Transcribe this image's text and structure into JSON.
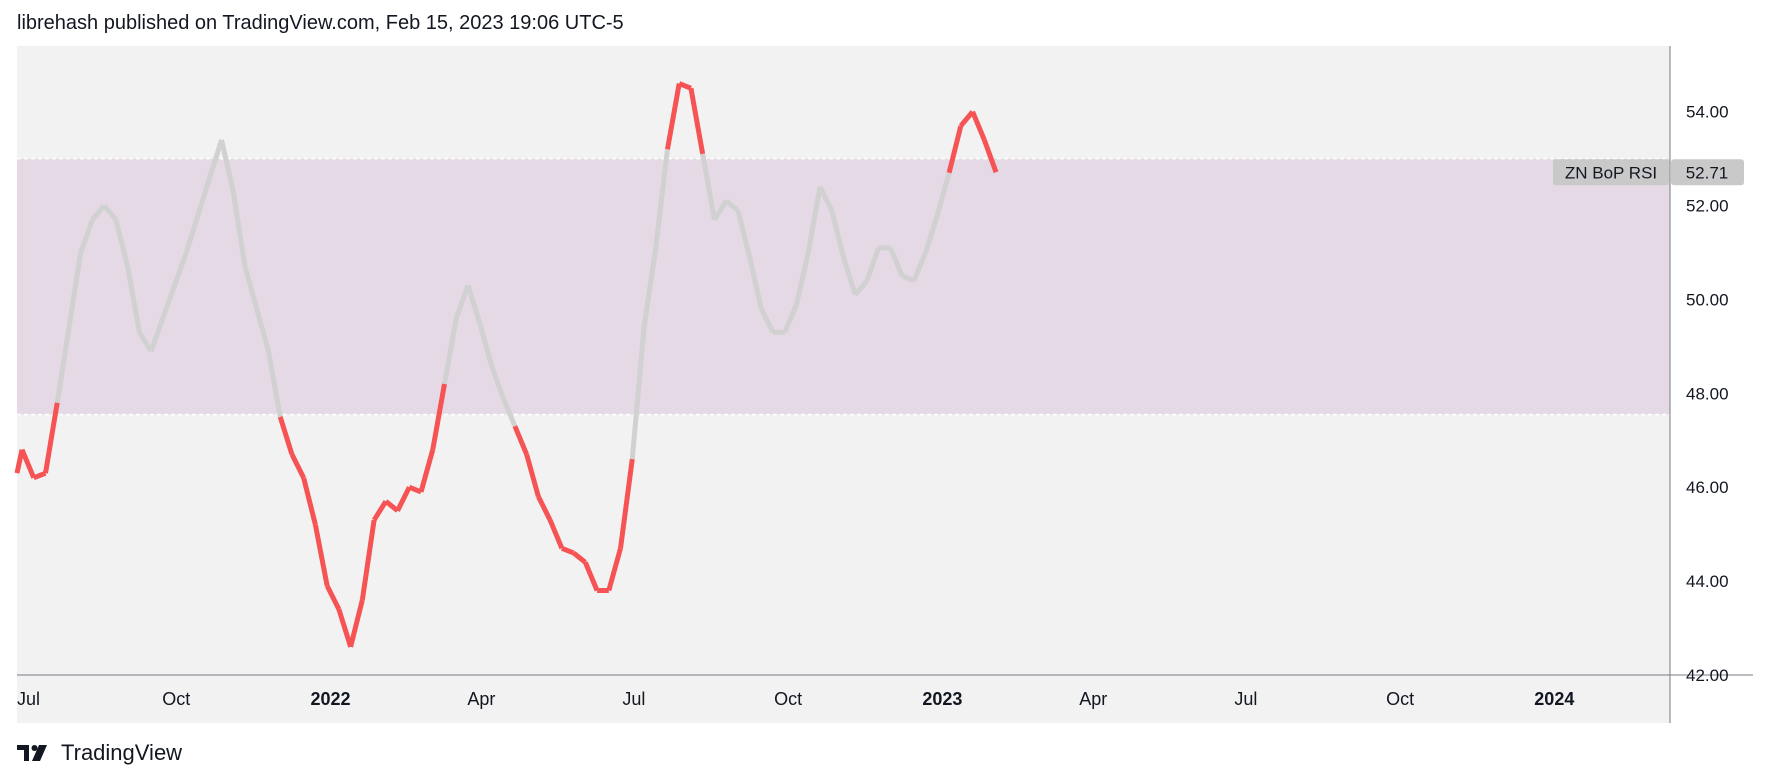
{
  "header": {
    "text": "librehash published on TradingView.com, Feb 15, 2023 19:06 UTC-5"
  },
  "footer": {
    "brand": "TradingView"
  },
  "colors": {
    "background": "#f2f2f2",
    "band_fill": "#e4d9e4",
    "band_line": "#ffffff",
    "in_band": "#d1d1d1",
    "out_band": "#f55354",
    "axis_line": "#787b86",
    "badge_bg": "#c9c9c9"
  },
  "chart_data": {
    "type": "line",
    "title": "",
    "xlabel": "",
    "ylabel": "",
    "ylim": [
      42,
      55.4
    ],
    "xlim": [
      "2021-06-28",
      "2024-03-10"
    ],
    "y_ticks": [
      "42.00",
      "44.00",
      "46.00",
      "48.00",
      "50.00",
      "52.00",
      "54.00"
    ],
    "x_ticks": [
      {
        "label": "Jul",
        "date": "2021-07-01",
        "bold": false
      },
      {
        "label": "Oct",
        "date": "2021-10-01",
        "bold": false
      },
      {
        "label": "2022",
        "date": "2022-01-01",
        "bold": true
      },
      {
        "label": "Apr",
        "date": "2022-04-01",
        "bold": false
      },
      {
        "label": "Jul",
        "date": "2022-07-01",
        "bold": false
      },
      {
        "label": "Oct",
        "date": "2022-10-01",
        "bold": false
      },
      {
        "label": "2023",
        "date": "2023-01-01",
        "bold": true
      },
      {
        "label": "Apr",
        "date": "2023-04-01",
        "bold": false
      },
      {
        "label": "Jul",
        "date": "2023-07-01",
        "bold": false
      },
      {
        "label": "Oct",
        "date": "2023-10-01",
        "bold": false
      },
      {
        "label": "2024",
        "date": "2024-01-01",
        "bold": true
      }
    ],
    "band": {
      "upper": 53.0,
      "lower": 47.55
    },
    "series": [
      {
        "name": "ZN BoP RSI",
        "last_value": "52.71",
        "points": [
          [
            "2021-06-28",
            46.3
          ],
          [
            "2021-07-01",
            46.8
          ],
          [
            "2021-07-08",
            46.2
          ],
          [
            "2021-07-15",
            46.3
          ],
          [
            "2021-07-22",
            47.8
          ],
          [
            "2021-07-29",
            49.4
          ],
          [
            "2021-08-05",
            51.0
          ],
          [
            "2021-08-12",
            51.7
          ],
          [
            "2021-08-19",
            52.0
          ],
          [
            "2021-08-26",
            51.7
          ],
          [
            "2021-09-02",
            50.7
          ],
          [
            "2021-09-09",
            49.3
          ],
          [
            "2021-09-16",
            48.9
          ],
          [
            "2021-09-23",
            49.6
          ],
          [
            "2021-09-30",
            50.3
          ],
          [
            "2021-10-07",
            51.0
          ],
          [
            "2021-10-14",
            51.8
          ],
          [
            "2021-10-21",
            52.6
          ],
          [
            "2021-10-28",
            53.4
          ],
          [
            "2021-11-04",
            52.3
          ],
          [
            "2021-11-11",
            50.7
          ],
          [
            "2021-11-18",
            49.8
          ],
          [
            "2021-11-25",
            48.9
          ],
          [
            "2021-12-02",
            47.5
          ],
          [
            "2021-12-09",
            46.7
          ],
          [
            "2021-12-16",
            46.2
          ],
          [
            "2021-12-23",
            45.2
          ],
          [
            "2021-12-30",
            43.9
          ],
          [
            "2022-01-06",
            43.4
          ],
          [
            "2022-01-13",
            42.6
          ],
          [
            "2022-01-20",
            43.6
          ],
          [
            "2022-01-27",
            45.3
          ],
          [
            "2022-02-03",
            45.7
          ],
          [
            "2022-02-10",
            45.5
          ],
          [
            "2022-02-17",
            46.0
          ],
          [
            "2022-02-24",
            45.9
          ],
          [
            "2022-03-03",
            46.8
          ],
          [
            "2022-03-10",
            48.2
          ],
          [
            "2022-03-17",
            49.6
          ],
          [
            "2022-03-24",
            50.3
          ],
          [
            "2022-03-31",
            49.5
          ],
          [
            "2022-04-07",
            48.6
          ],
          [
            "2022-04-14",
            47.9
          ],
          [
            "2022-04-21",
            47.3
          ],
          [
            "2022-04-28",
            46.7
          ],
          [
            "2022-05-05",
            45.8
          ],
          [
            "2022-05-12",
            45.3
          ],
          [
            "2022-05-19",
            44.7
          ],
          [
            "2022-05-26",
            44.6
          ],
          [
            "2022-06-02",
            44.4
          ],
          [
            "2022-06-09",
            43.8
          ],
          [
            "2022-06-16",
            43.8
          ],
          [
            "2022-06-23",
            44.7
          ],
          [
            "2022-06-30",
            46.6
          ],
          [
            "2022-07-07",
            49.4
          ],
          [
            "2022-07-14",
            51.1
          ],
          [
            "2022-07-21",
            53.2
          ],
          [
            "2022-07-28",
            54.6
          ],
          [
            "2022-08-04",
            54.5
          ],
          [
            "2022-08-11",
            53.1
          ],
          [
            "2022-08-18",
            51.7
          ],
          [
            "2022-08-25",
            52.1
          ],
          [
            "2022-09-01",
            51.9
          ],
          [
            "2022-09-08",
            50.9
          ],
          [
            "2022-09-15",
            49.8
          ],
          [
            "2022-09-22",
            49.3
          ],
          [
            "2022-09-29",
            49.3
          ],
          [
            "2022-10-06",
            49.9
          ],
          [
            "2022-10-13",
            51.0
          ],
          [
            "2022-10-20",
            52.4
          ],
          [
            "2022-10-27",
            51.9
          ],
          [
            "2022-11-03",
            50.9
          ],
          [
            "2022-11-10",
            50.1
          ],
          [
            "2022-11-17",
            50.4
          ],
          [
            "2022-11-24",
            51.1
          ],
          [
            "2022-12-01",
            51.1
          ],
          [
            "2022-12-08",
            50.5
          ],
          [
            "2022-12-15",
            50.4
          ],
          [
            "2022-12-22",
            51.0
          ],
          [
            "2022-12-29",
            51.8
          ],
          [
            "2023-01-05",
            52.7
          ],
          [
            "2023-01-12",
            53.7
          ],
          [
            "2023-01-19",
            54.0
          ],
          [
            "2023-01-26",
            53.4
          ],
          [
            "2023-02-02",
            52.71
          ]
        ]
      }
    ]
  }
}
